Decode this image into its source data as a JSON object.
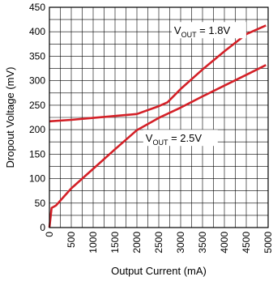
{
  "chart_data": {
    "type": "line",
    "title": "",
    "xlabel": "Output Current (mA)",
    "ylabel": "Dropout Voltage (mV)",
    "xlim": [
      0,
      5000
    ],
    "ylim": [
      0,
      450
    ],
    "xticks": [
      0,
      500,
      1000,
      1500,
      2000,
      2500,
      3000,
      3500,
      4000,
      4500,
      5000
    ],
    "yticks": [
      0,
      50,
      100,
      150,
      200,
      250,
      300,
      350,
      400,
      450
    ],
    "x_minor_step": 250,
    "y_minor_step": 25,
    "grid": true,
    "line_color": "#d42027",
    "series": [
      {
        "name": "VOUT = 1.8V",
        "label_main": "V",
        "label_sub": "OUT",
        "label_tail": " = 1.8V",
        "x": [
          0,
          500,
          1000,
          1500,
          2000,
          2500,
          2700,
          3000,
          3500,
          4000,
          4500,
          4950
        ],
        "y": [
          217,
          220,
          224,
          228,
          232,
          248,
          256,
          283,
          323,
          360,
          395,
          413
        ]
      },
      {
        "name": "VOUT = 2.5V",
        "label_main": "V",
        "label_sub": "OUT",
        "label_tail": " = 2.5V",
        "x": [
          0,
          50,
          150,
          500,
          1000,
          1500,
          2000,
          2500,
          3000,
          3500,
          4000,
          4500,
          4950
        ],
        "y": [
          0,
          40,
          45,
          80,
          120,
          160,
          199,
          224,
          245,
          268,
          290,
          312,
          332
        ]
      }
    ],
    "annotations": [
      {
        "series": 0,
        "x": 2850,
        "y": 395
      },
      {
        "series": 1,
        "x": 2200,
        "y": 175
      }
    ]
  }
}
